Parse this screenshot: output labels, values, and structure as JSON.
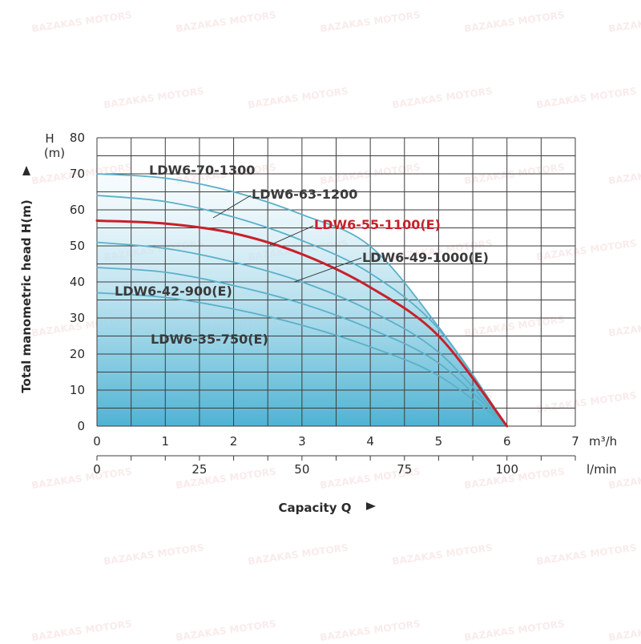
{
  "chart_data": {
    "type": "line",
    "xlabel": "Capacity Q",
    "ylabel": "Total manometric head H(m)",
    "y_unit_label": [
      "H",
      "(m)"
    ],
    "x_unit_label": "m³/h",
    "x2_unit_label": "l/min",
    "xlim": [
      0,
      7
    ],
    "ylim": [
      0,
      80
    ],
    "x_ticks": [
      "0",
      "1",
      "2",
      "3",
      "4",
      "5",
      "6",
      "7"
    ],
    "y_ticks": [
      "0",
      "10",
      "20",
      "30",
      "40",
      "50",
      "60",
      "70",
      "80"
    ],
    "x2_ticks": [
      {
        "label": "0",
        "x": 0
      },
      {
        "label": "25",
        "x": 1.5
      },
      {
        "label": "50",
        "x": 3
      },
      {
        "label": "75",
        "x": 4.5
      },
      {
        "label": "100",
        "x": 6
      }
    ],
    "grid": true,
    "series": [
      {
        "name": "LDW6-70-1300",
        "color": "#5bb0c8",
        "highlight": false,
        "x": [
          0,
          1,
          2,
          3,
          4,
          5,
          6
        ],
        "values": [
          70,
          68.8,
          65,
          58.7,
          49.9,
          27.5,
          0
        ]
      },
      {
        "name": "LDW6-63-1200",
        "color": "#5bb0c8",
        "highlight": false,
        "x": [
          0,
          1,
          2,
          3,
          4,
          5,
          6
        ],
        "values": [
          64,
          62.3,
          58,
          51.5,
          42.4,
          27,
          0
        ]
      },
      {
        "name": "LDW6-55-1100(E)",
        "color": "#c8202a",
        "highlight": true,
        "x": [
          0,
          1,
          2,
          3,
          4,
          5,
          6
        ],
        "values": [
          57,
          56.2,
          53.5,
          47.7,
          38.5,
          25,
          0
        ]
      },
      {
        "name": "LDW6-49-1000(E)",
        "color": "#5bb0c8",
        "highlight": false,
        "x": [
          0,
          1,
          2,
          3,
          4,
          5,
          6
        ],
        "values": [
          51,
          49.3,
          45.5,
          40,
          32,
          20.5,
          0
        ]
      },
      {
        "name": "LDW6-42-900(E)",
        "color": "#5bb0c8",
        "highlight": false,
        "x": [
          0,
          1,
          2,
          3,
          4,
          5,
          6
        ],
        "values": [
          44,
          42.7,
          39,
          34,
          27,
          17.5,
          0
        ]
      },
      {
        "name": "LDW6-35-750(E)",
        "color": "#5bb0c8",
        "highlight": false,
        "x": [
          0,
          1,
          2,
          3,
          4,
          5,
          6
        ],
        "values": [
          37,
          35.7,
          32.5,
          28,
          22,
          14,
          0
        ]
      }
    ],
    "annotations": [
      {
        "series": "LDW6-70-1300"
      },
      {
        "series": "LDW6-63-1200"
      },
      {
        "series": "LDW6-55-1100(E)"
      },
      {
        "series": "LDW6-49-1000(E)"
      },
      {
        "series": "LDW6-42-900(E)"
      },
      {
        "series": "LDW6-35-750(E)"
      }
    ],
    "colors": {
      "grid": "#3d3d3d",
      "fill_top": "#ffffff",
      "fill_bottom": "#5ab9d6",
      "axis_text": "#2b2b2b",
      "highlight": "#c8202a"
    }
  },
  "watermark": "BAZAKAS MOTORS"
}
